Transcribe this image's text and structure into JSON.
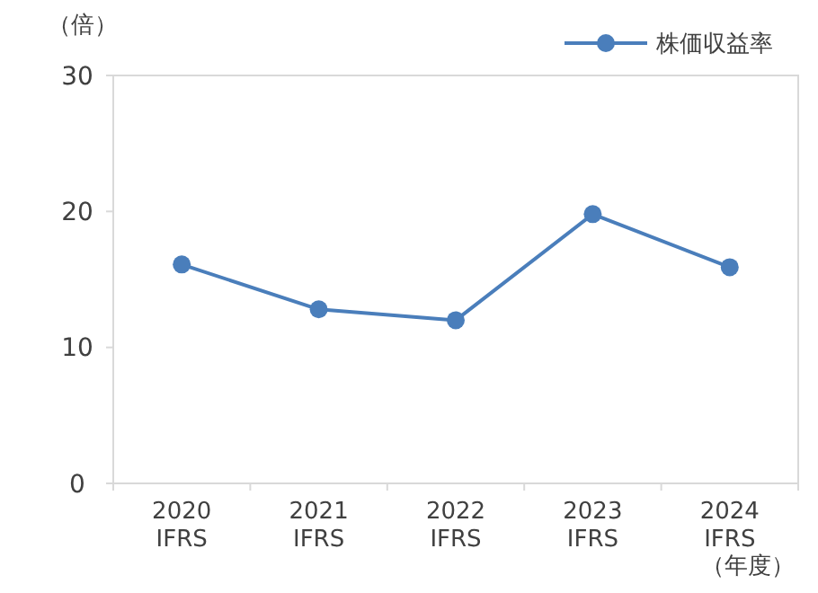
{
  "chart_data": {
    "type": "line",
    "ylabel": "（倍）",
    "xlabel": "（年度）",
    "categories": [
      "2020\nIFRS",
      "2021\nIFRS",
      "2022\nIFRS",
      "2023\nIFRS",
      "2024\nIFRS"
    ],
    "series": [
      {
        "name": "株価収益率",
        "color": "#4a7ebb",
        "values": [
          16.1,
          12.8,
          12.0,
          19.8,
          15.9
        ]
      }
    ],
    "ylim": [
      0,
      30
    ],
    "yticks": [
      0,
      10,
      20,
      30
    ],
    "grid": false,
    "legend": "top right",
    "marker": "circle",
    "line_style": "solid"
  }
}
